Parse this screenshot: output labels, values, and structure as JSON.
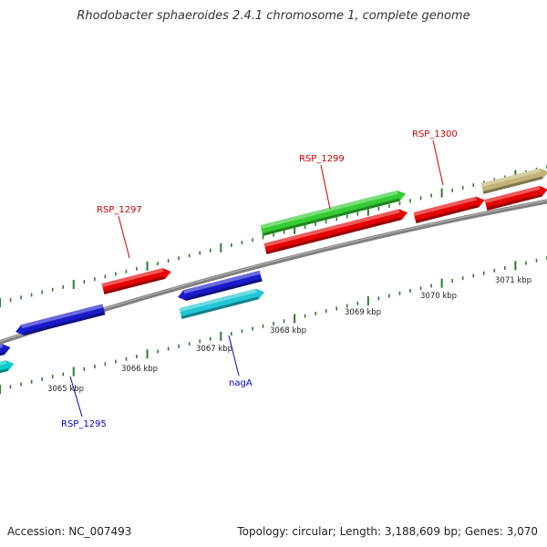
{
  "title": "Rhodobacter sphaeroides 2.4.1 chromosome 1, complete genome",
  "footer": {
    "accession": "Accession: NC_007493",
    "summary": "Topology: circular; Length: 3,188,609 bp; Genes: 3,070"
  },
  "colors": {
    "backbone": "#808080",
    "tick": "#2e7d2e",
    "label_red": "#cc0000",
    "label_blue": "#0000cc"
  },
  "scale_labels": [
    "3065 kbp",
    "3066 kbp",
    "3067 kbp",
    "3068 kbp",
    "3069 kbp",
    "3070 kbp",
    "3071 kbp"
  ],
  "genes": [
    {
      "name": "blue-left-edge",
      "color": "#1a1acc",
      "track": "reverse-outer"
    },
    {
      "name": "cyan-left-edge",
      "color": "#00cccc",
      "track": "reverse-inner"
    },
    {
      "name": "blue-rsp1295",
      "color": "#1a1acc",
      "track": "reverse-outer"
    },
    {
      "name": "red-rsp1297",
      "color": "#e60000",
      "track": "forward-inner"
    },
    {
      "name": "blue-reverse",
      "color": "#1a1acc",
      "track": "reverse-outer"
    },
    {
      "name": "cyan-naga",
      "color": "#22c6d4",
      "track": "reverse-inner"
    },
    {
      "name": "green-rsp1299",
      "color": "#33cc33",
      "track": "forward-outer"
    },
    {
      "name": "red-rsp1299",
      "color": "#e60000",
      "track": "forward-inner"
    },
    {
      "name": "red-rsp1300",
      "color": "#e60000",
      "track": "forward-inner"
    },
    {
      "name": "red-right-edge",
      "color": "#e60000",
      "track": "forward-inner"
    },
    {
      "name": "khaki-right-edge",
      "color": "#c2b478",
      "track": "forward-outer"
    }
  ],
  "gene_labels": [
    {
      "text": "RSP_1297",
      "color": "#cc0000"
    },
    {
      "text": "RSP_1299",
      "color": "#cc0000"
    },
    {
      "text": "RSP_1300",
      "color": "#cc0000"
    },
    {
      "text": "nagA",
      "color": "#0000cc"
    },
    {
      "text": "RSP_1295",
      "color": "#0000cc"
    }
  ]
}
